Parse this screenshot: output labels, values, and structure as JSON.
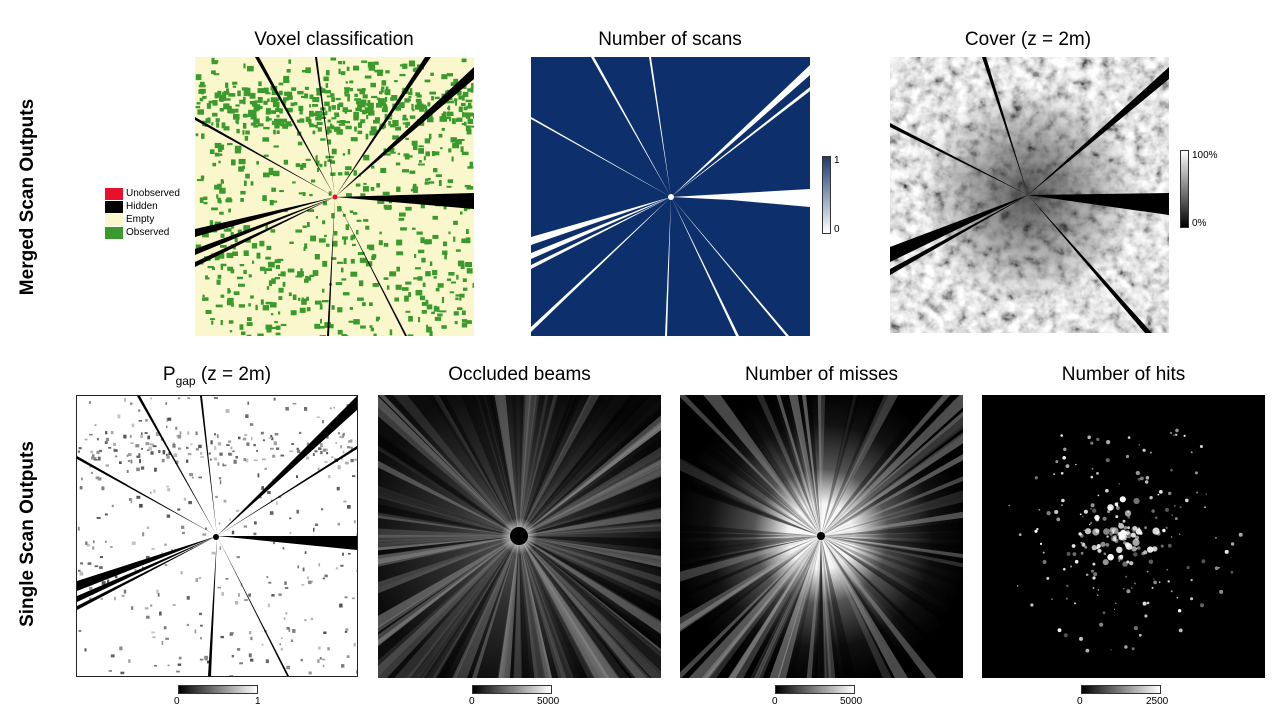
{
  "row_labels": {
    "merged": "Merged Scan Outputs",
    "single": "Single Scan Outputs"
  },
  "panels": {
    "voxel": {
      "title": "Voxel classification"
    },
    "scans": {
      "title": "Number of scans"
    },
    "cover": {
      "title": "Cover (z = 2m)"
    },
    "pgap": {
      "title_main": "P",
      "title_sub": "gap",
      "title_rest": " (z = 2m)"
    },
    "occluded": {
      "title": "Occluded beams"
    },
    "misses": {
      "title": "Number of misses"
    },
    "hits": {
      "title": "Number of hits"
    }
  },
  "legend": {
    "items": [
      {
        "label": "Unobserved",
        "color": "#e8102a"
      },
      {
        "label": "Hidden",
        "color": "#000000"
      },
      {
        "label": "Empty",
        "color": "#fbf7cc"
      },
      {
        "label": "Observed",
        "color": "#3a9a2c"
      }
    ]
  },
  "colorbars": {
    "scans": {
      "max": "1",
      "min": "0"
    },
    "cover": {
      "max": "100%",
      "min": "0%"
    },
    "pgap": {
      "min": "0",
      "max": "1"
    },
    "occluded": {
      "min": "0",
      "max": "5000"
    },
    "misses": {
      "min": "0",
      "max": "5000"
    },
    "hits": {
      "min": "0",
      "max": "2500"
    }
  },
  "colors": {
    "navy": "#0d2f6b",
    "cream": "#fbf7cc",
    "green": "#3a9a2c"
  }
}
